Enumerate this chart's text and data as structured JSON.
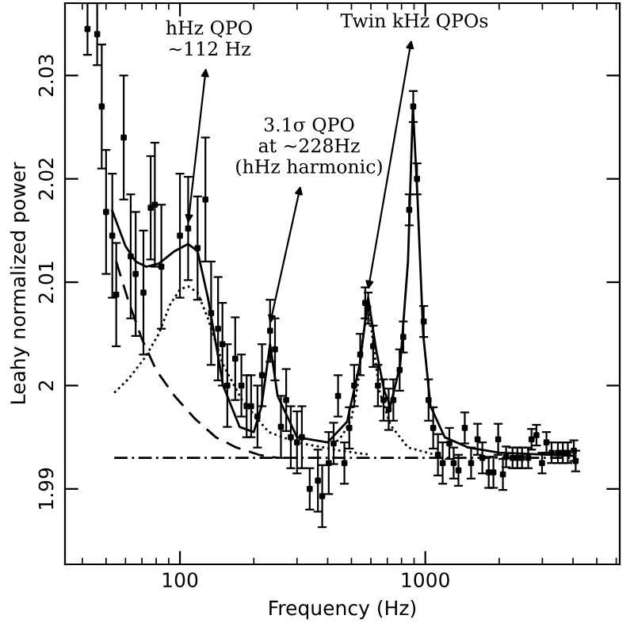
{
  "chart_data": {
    "type": "scatter",
    "xlabel": "Frequency (Hz)",
    "ylabel": "Leahy normalized power",
    "log": "x",
    "xlim": [
      34,
      6200
    ],
    "ylim": [
      1.9827,
      2.037
    ],
    "xticks": [
      100,
      1000
    ],
    "yticks": [
      {
        "value": 1.99,
        "label": "1.99"
      },
      {
        "value": 2.0,
        "label": "2"
      },
      {
        "value": 2.01,
        "label": "2.01"
      },
      {
        "value": 2.02,
        "label": "2.02"
      },
      {
        "value": 2.03,
        "label": "2.03"
      }
    ],
    "grid": false,
    "series": [
      {
        "color": "#000000",
        "marker": "square",
        "x": [
          42,
          46,
          48,
          50,
          53,
          55,
          59,
          63,
          66,
          71,
          76,
          79,
          84,
          100,
          108,
          118,
          127,
          134,
          143,
          149,
          156,
          168,
          178,
          187,
          195,
          207,
          216,
          233,
          244,
          258,
          271,
          283,
          300,
          314,
          338,
          365,
          380,
          404,
          423,
          441,
          468,
          490,
          513,
          543,
          569,
          585,
          613,
          641,
          676,
          709,
          741,
          786,
          813,
          860,
          893,
          925,
          985,
          1031,
          1077,
          1126,
          1177,
          1253,
          1305,
          1365,
          1448,
          1537,
          1633,
          1708,
          1813,
          1895,
          1982,
          2071,
          2135,
          2267,
          2372,
          2479,
          2627,
          2710,
          2837,
          2990,
          3117,
          3270,
          3470,
          3635,
          3810,
          4030,
          4100
        ],
        "values": [
          2.0345,
          2.034,
          2.027,
          2.0168,
          2.0145,
          2.0088,
          2.024,
          2.0125,
          2.0108,
          2.009,
          2.0172,
          2.0175,
          2.0115,
          2.0145,
          2.0152,
          2.0133,
          2.018,
          2.007,
          2.0055,
          2.004,
          2.0,
          2.0026,
          2.0,
          1.998,
          1.998,
          1.997,
          2.001,
          2.0053,
          2.0035,
          1.996,
          1.9986,
          1.995,
          1.9945,
          1.995,
          1.99,
          1.9908,
          1.9893,
          1.9925,
          1.9944,
          1.999,
          1.9925,
          1.9959,
          2.0,
          2.003,
          2.008,
          2.0075,
          2.0038,
          2.0,
          1.9986,
          1.9977,
          1.9986,
          2.0015,
          2.0047,
          2.017,
          2.027,
          2.02,
          2.0062,
          1.9986,
          1.9959,
          1.9933,
          1.9925,
          1.9944,
          1.9925,
          1.9918,
          1.9959,
          1.9925,
          1.9948,
          1.993,
          1.9916,
          1.9916,
          1.9948,
          1.9914,
          1.9931,
          1.993,
          1.993,
          1.993,
          1.993,
          1.9948,
          1.9952,
          1.9925,
          1.9945,
          1.9935,
          1.9935,
          1.9935,
          1.9935,
          1.9937,
          1.9927
        ],
        "errors": [
          0.0025,
          0.003,
          0.006,
          0.006,
          0.006,
          0.005,
          0.006,
          0.006,
          0.006,
          0.006,
          0.005,
          0.006,
          0.006,
          0.006,
          0.005,
          0.005,
          0.006,
          0.005,
          0.005,
          0.004,
          0.004,
          0.004,
          0.003,
          0.003,
          0.003,
          0.003,
          0.003,
          0.003,
          0.003,
          0.003,
          0.003,
          0.003,
          0.003,
          0.003,
          0.002,
          0.003,
          0.003,
          0.003,
          0.002,
          0.002,
          0.002,
          0.002,
          0.002,
          0.002,
          0.0015,
          0.0015,
          0.002,
          0.002,
          0.002,
          0.002,
          0.002,
          0.002,
          0.0015,
          0.0015,
          0.0015,
          0.0015,
          0.0015,
          0.002,
          0.002,
          0.002,
          0.002,
          0.0015,
          0.0015,
          0.0015,
          0.0015,
          0.0015,
          0.0015,
          0.0015,
          0.0015,
          0.0015,
          0.0015,
          0.0015,
          0.001,
          0.001,
          0.001,
          0.001,
          0.001,
          0.001,
          0.001,
          0.001,
          0.001,
          0.001,
          0.001,
          0.001,
          0.001,
          0.001,
          0.001
        ]
      },
      {
        "type": "line",
        "color": "#000000",
        "line_style": "solid",
        "x": [
          53,
          60,
          66,
          73,
          82,
          95,
          108,
          118,
          130,
          150,
          175,
          200,
          215,
          233,
          250,
          300,
          400,
          480,
          540,
          585,
          630,
          680,
          720,
          790,
          850,
          890,
          930,
          980,
          1050,
          1200,
          1500,
          2000,
          4000
        ],
        "values": [
          2.0169,
          2.0135,
          2.012,
          2.0115,
          2.0118,
          2.013,
          2.0137,
          2.013,
          2.0085,
          2.0,
          1.996,
          1.9955,
          1.998,
          2.004,
          1.999,
          1.995,
          1.9945,
          1.9965,
          2.002,
          2.0085,
          2.0035,
          1.9995,
          1.998,
          2.002,
          2.012,
          2.027,
          2.018,
          2.005,
          1.998,
          1.995,
          1.994,
          1.9935,
          1.9932
        ]
      },
      {
        "type": "line",
        "color": "#000000",
        "line_style": "dashed",
        "x": [
          55,
          62,
          70,
          80,
          95,
          115,
          140,
          170,
          210,
          250
        ],
        "values": [
          2.012,
          2.008,
          2.0045,
          2.0015,
          1.999,
          1.9968,
          1.995,
          1.994,
          1.9933,
          1.993
        ]
      },
      {
        "type": "line",
        "color": "#000000",
        "line_style": "dotted",
        "x": [
          54,
          62,
          72,
          82,
          91,
          100,
          108,
          118,
          130,
          150,
          180,
          230,
          300,
          450,
          600
        ],
        "values": [
          1.9993,
          2.0007,
          2.0027,
          2.005,
          2.0078,
          2.0093,
          2.0096,
          2.009,
          2.0065,
          2.002,
          1.9985,
          1.9955,
          1.9945,
          1.9937,
          1.9933
        ]
      },
      {
        "type": "line",
        "color": "#000000",
        "line_style": "dotted",
        "x": [
          420,
          460,
          500,
          530,
          560,
          585,
          610,
          650,
          720,
          850,
          1100
        ],
        "values": [
          1.9942,
          1.9952,
          1.9968,
          2.0,
          2.005,
          2.0082,
          2.0045,
          1.9995,
          1.9962,
          1.994,
          1.9933
        ]
      },
      {
        "type": "line",
        "color": "#000000",
        "line_style": "dashdot",
        "x": [
          54,
          4100
        ],
        "values": [
          1.993,
          1.993
        ]
      }
    ],
    "annotations": [
      {
        "text": "hHz QPO\n~112 Hz",
        "x": 108,
        "y": 2.0157
      },
      {
        "text": "3.1σ QPO\nat ~228Hz\n(hHz harmonic)",
        "x": 233,
        "y": 2.006
      },
      {
        "text": "Twin kHz QPOs",
        "x": 585,
        "y": 2.0093
      }
    ]
  }
}
